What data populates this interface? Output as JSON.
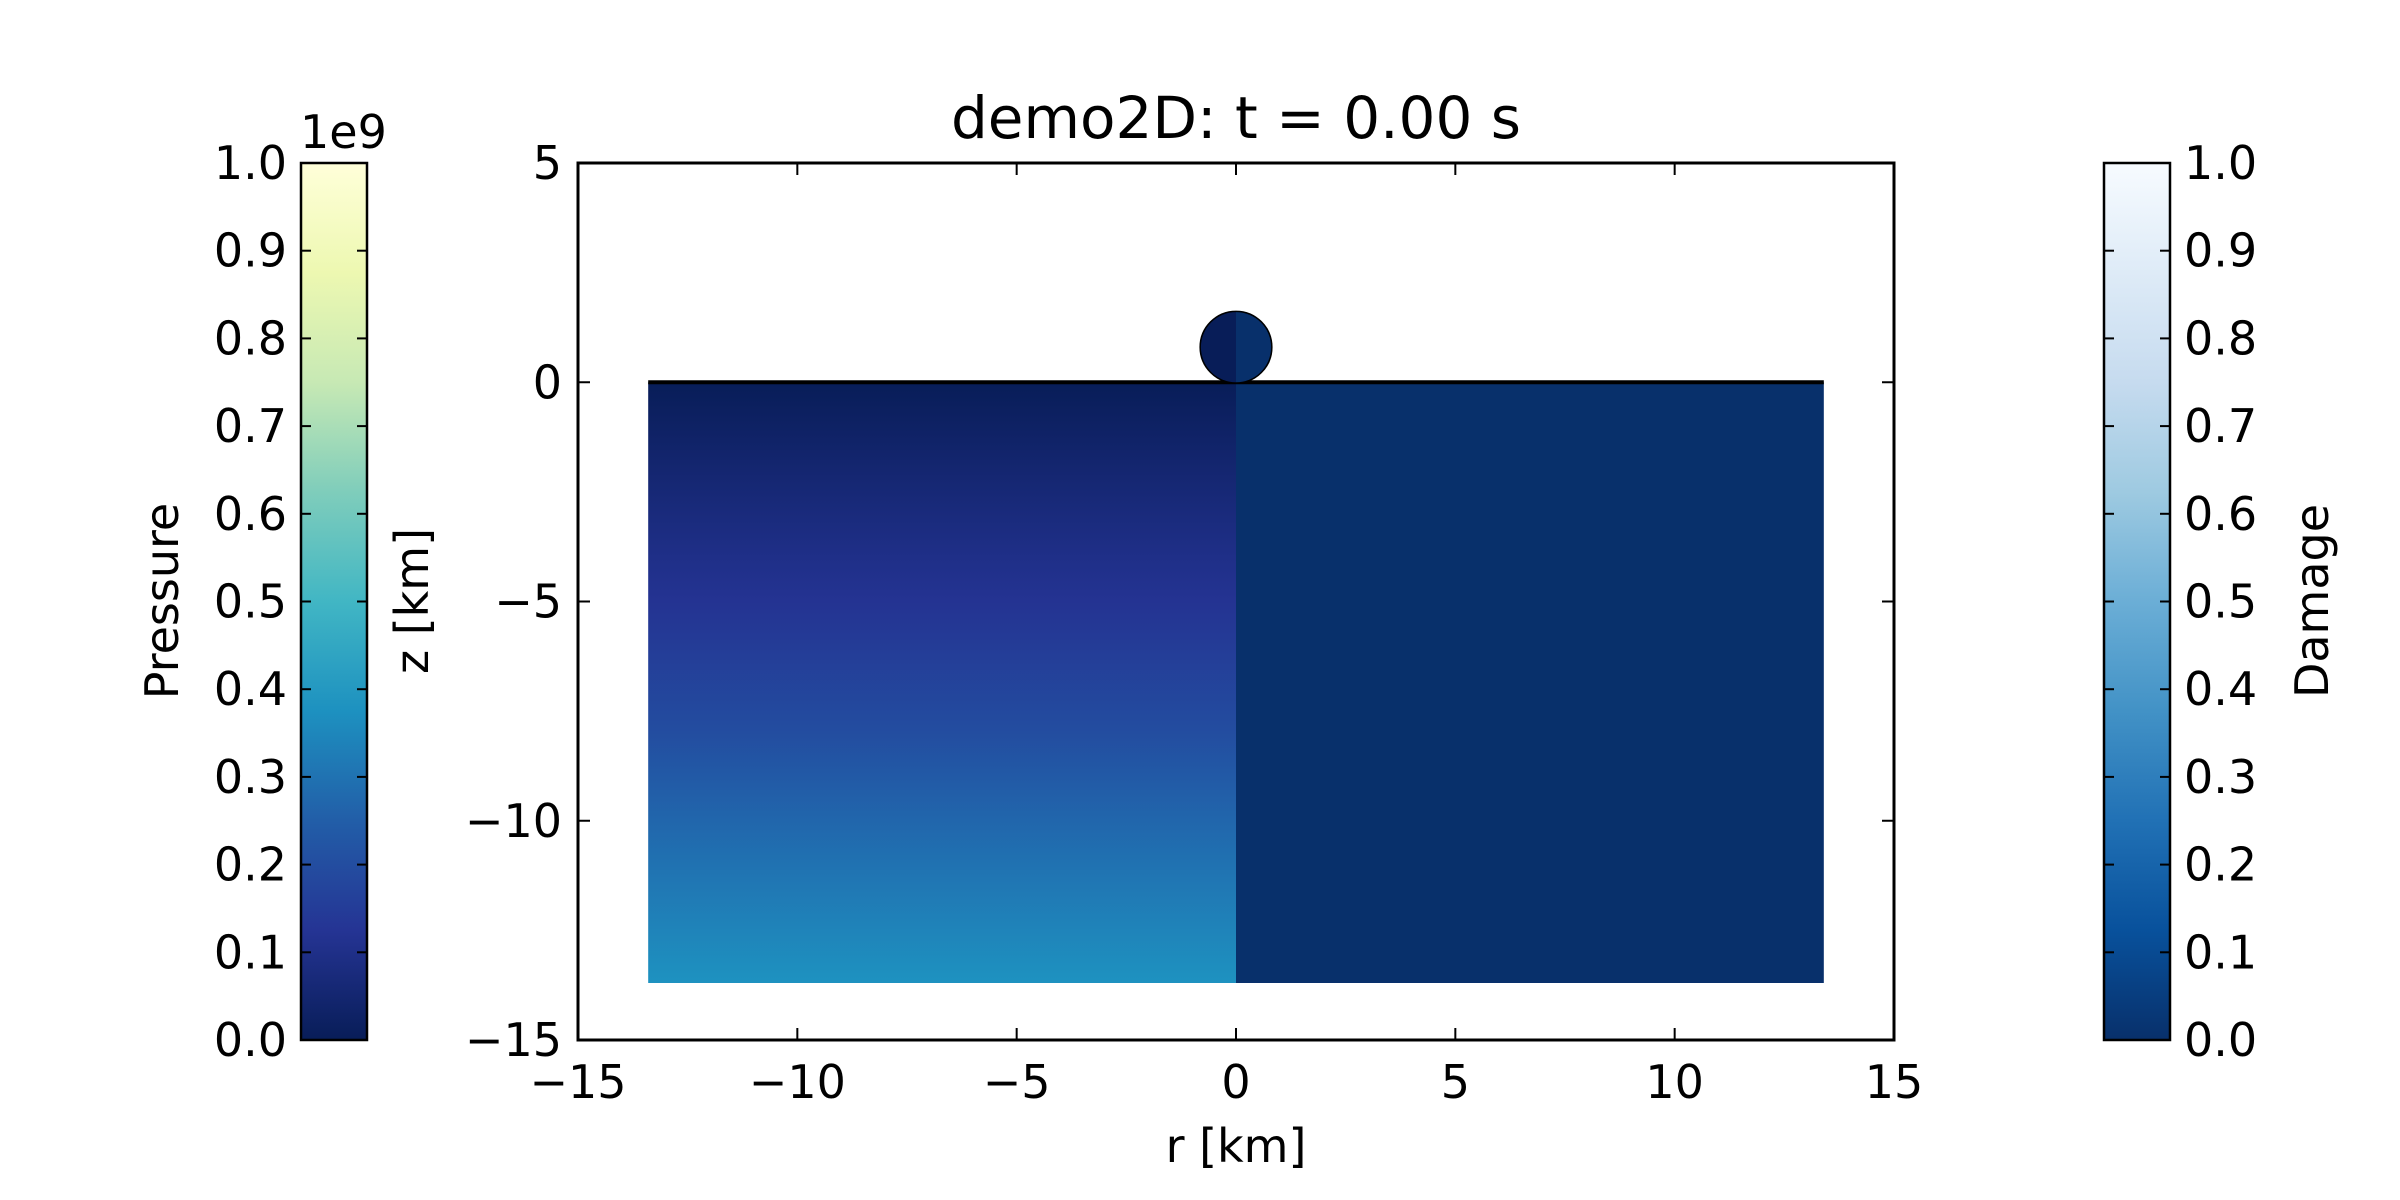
{
  "chart_data": {
    "type": "heatmap",
    "title": "demo2D: t =  0.00 s",
    "xlabel": "r [km]",
    "ylabel": "z [km]",
    "xlim": [
      -15,
      15
    ],
    "ylim": [
      -15,
      5
    ],
    "xticks": [
      -15,
      -10,
      -5,
      0,
      5,
      10,
      15
    ],
    "yticks": [
      -15,
      -10,
      -5,
      0,
      5
    ],
    "x_tick_labels": [
      "−15",
      "−10",
      "−5",
      "0",
      "5",
      "10",
      "15"
    ],
    "y_tick_labels": [
      "−15",
      "−10",
      "−5",
      "0",
      "5"
    ],
    "grid": false,
    "domain": {
      "r_range": [
        -13.4,
        13.4
      ],
      "z_range": [
        -13.7,
        0
      ]
    },
    "impactor": {
      "center_r": 0,
      "center_z": 0.8,
      "radius": 0.8
    },
    "fields": [
      {
        "name": "Pressure",
        "half": "left",
        "unit_multiplier": "1e9",
        "profile_z": [
          0,
          -2,
          -4,
          -5,
          -8,
          -10,
          -13.7
        ],
        "profile_value": [
          0.0,
          0.05,
          0.1,
          0.12,
          0.2,
          0.27,
          0.38
        ]
      },
      {
        "name": "Damage",
        "half": "right",
        "uniform_value": 0.0
      }
    ],
    "colorbars": [
      {
        "label": "Pressure",
        "offset_text": "1e9",
        "range": [
          0,
          1
        ],
        "tick_labels": [
          "0.0",
          "0.1",
          "0.2",
          "0.3",
          "0.4",
          "0.5",
          "0.6",
          "0.7",
          "0.8",
          "0.9",
          "1.0"
        ],
        "colormap": "YlGnBu_r",
        "stops": [
          "#081d58",
          "#253494",
          "#225ea8",
          "#1d91c0",
          "#41b6c4",
          "#7fcdbb",
          "#c7e9b4",
          "#edf8b1",
          "#ffffd9"
        ]
      },
      {
        "label": "Damage",
        "range": [
          0,
          1
        ],
        "tick_labels": [
          "0.0",
          "0.1",
          "0.2",
          "0.3",
          "0.4",
          "0.5",
          "0.6",
          "0.7",
          "0.8",
          "0.9",
          "1.0"
        ],
        "colormap": "Blues_r",
        "stops": [
          "#08306b",
          "#08519c",
          "#2171b5",
          "#4292c6",
          "#6baed6",
          "#9ecae1",
          "#c6dbef",
          "#deebf7",
          "#f7fbff"
        ]
      }
    ]
  }
}
